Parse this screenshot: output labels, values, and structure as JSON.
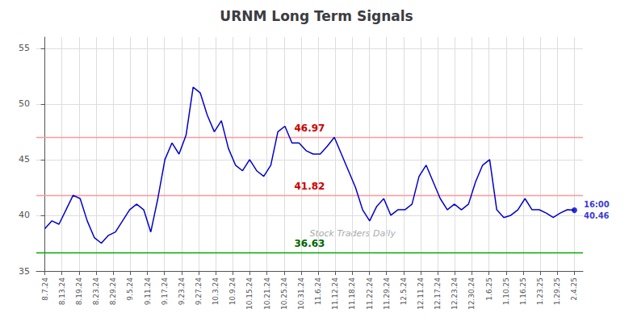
{
  "chart_data": {
    "type": "line",
    "title": "URNM Long Term Signals",
    "x": [
      0,
      0.4133,
      0.8267,
      1.24,
      1.6533,
      2.0667,
      2.48,
      2.8933,
      3.3067,
      3.72,
      4.1333,
      4.5467,
      4.96,
      5.3733,
      5.7867,
      6.2,
      6.6133,
      7.0267,
      7.44,
      7.8533,
      8.2667,
      8.68,
      9.0933,
      9.5067,
      9.92,
      10.3333,
      10.7467,
      11.16,
      11.5733,
      11.9867,
      12.4,
      12.8133,
      13.2267,
      13.64,
      14.0533,
      14.4667,
      14.88,
      15.2933,
      15.7067,
      16.12,
      16.5333,
      16.9467,
      17.36,
      17.7733,
      18.1867,
      18.6,
      19.0133,
      19.4267,
      19.84,
      20.2533,
      20.6667,
      21.08,
      21.4933,
      21.9067,
      22.32,
      22.7333,
      23.1467,
      23.56,
      23.9733,
      24.3867,
      24.8,
      25.2133,
      25.6267,
      26.04,
      26.4533,
      26.8667,
      27.28,
      27.6933,
      28.1067,
      28.52,
      28.9333,
      29.3467,
      29.76,
      30.1733,
      30.5867,
      31
    ],
    "values": [
      38.8,
      39.5,
      39.2,
      40.5,
      41.8,
      41.5,
      39.5,
      38.0,
      37.5,
      38.2,
      38.5,
      39.5,
      40.5,
      41.0,
      40.5,
      38.5,
      41.5,
      45.0,
      46.5,
      45.5,
      47.2,
      51.5,
      51.0,
      49.0,
      47.5,
      48.5,
      46.0,
      44.5,
      44.0,
      45.0,
      44.0,
      43.5,
      44.5,
      47.5,
      48.0,
      46.5,
      46.5,
      45.8,
      45.5,
      45.5,
      46.2,
      47.0,
      45.5,
      44.0,
      42.5,
      40.5,
      39.5,
      40.8,
      41.5,
      40.0,
      40.5,
      40.5,
      41.0,
      43.5,
      44.5,
      43.0,
      41.5,
      40.5,
      41.0,
      40.5,
      41.0,
      43.0,
      44.5,
      45.0,
      40.5,
      39.8,
      40.0,
      40.5,
      41.5,
      40.5,
      40.5,
      40.2,
      39.8,
      40.2,
      40.5,
      40.46
    ],
    "color": "#0000cc",
    "xlim": [
      -0.5,
      31.5
    ],
    "xticks": [
      {
        "value": 0,
        "label": "8.7.24"
      },
      {
        "value": 1,
        "label": "8.13.24"
      },
      {
        "value": 2,
        "label": "8.19.24"
      },
      {
        "value": 3,
        "label": "8.23.24"
      },
      {
        "value": 4,
        "label": "8.29.24"
      },
      {
        "value": 5,
        "label": "9.5.24"
      },
      {
        "value": 6,
        "label": "9.11.24"
      },
      {
        "value": 7,
        "label": "9.17.24"
      },
      {
        "value": 8,
        "label": "9.23.24"
      },
      {
        "value": 9,
        "label": "9.27.24"
      },
      {
        "value": 10,
        "label": "10.3.24"
      },
      {
        "value": 11,
        "label": "10.9.24"
      },
      {
        "value": 12,
        "label": "10.15.24"
      },
      {
        "value": 13,
        "label": "10.21.24"
      },
      {
        "value": 14,
        "label": "10.25.24"
      },
      {
        "value": 15,
        "label": "10.31.24"
      },
      {
        "value": 16,
        "label": "11.6.24"
      },
      {
        "value": 17,
        "label": "11.12.24"
      },
      {
        "value": 18,
        "label": "11.18.24"
      },
      {
        "value": 19,
        "label": "11.22.24"
      },
      {
        "value": 20,
        "label": "11.29.24"
      },
      {
        "value": 21,
        "label": "12.5.24"
      },
      {
        "value": 22,
        "label": "12.11.24"
      },
      {
        "value": 23,
        "label": "12.17.24"
      },
      {
        "value": 24,
        "label": "12.23.24"
      },
      {
        "value": 25,
        "label": "12.30.24"
      },
      {
        "value": 26,
        "label": "1.6.25"
      },
      {
        "value": 27,
        "label": "1.10.25"
      },
      {
        "value": 28,
        "label": "1.16.25"
      },
      {
        "value": 29,
        "label": "1.23.25"
      },
      {
        "value": 30,
        "label": "1.29.25"
      },
      {
        "value": 31,
        "label": "2.4.25"
      }
    ],
    "ylim": [
      35,
      56
    ],
    "yticks": [
      35,
      40,
      45,
      50,
      55
    ],
    "grid": true,
    "hlines": [
      {
        "value": 47.0,
        "color": "#ff9999",
        "label": "46.97",
        "label_color": "#cc0000"
      },
      {
        "value": 41.82,
        "color": "#ff9999",
        "label": "41.82",
        "label_color": "#cc0000"
      },
      {
        "value": 36.63,
        "color": "#00aa00",
        "label": "36.63",
        "label_color": "#006600"
      }
    ],
    "end_point": {
      "label": "16:00",
      "value_label": "40.46",
      "color": "#0000cc"
    },
    "watermark": {
      "text": "Stock Traders Daily",
      "color": "#aaaaaa"
    }
  }
}
